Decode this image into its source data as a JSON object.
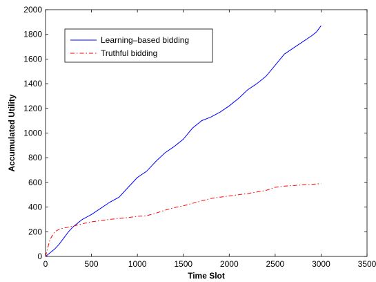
{
  "chart_data": {
    "type": "line",
    "xlabel": "Time Slot",
    "ylabel": "Accumulated Utility",
    "xlim": [
      0,
      3500
    ],
    "ylim": [
      0,
      2000
    ],
    "xticks": [
      0,
      500,
      1000,
      1500,
      2000,
      2500,
      3000,
      3500
    ],
    "yticks": [
      0,
      200,
      400,
      600,
      800,
      1000,
      1200,
      1400,
      1600,
      1800,
      2000
    ],
    "grid": false,
    "legend_position": "top-left",
    "series": [
      {
        "name": "Learning–based bidding",
        "color": "#0000ff",
        "style": "solid",
        "x": [
          0,
          50,
          100,
          150,
          200,
          250,
          300,
          350,
          400,
          450,
          500,
          600,
          700,
          800,
          900,
          1000,
          1100,
          1200,
          1300,
          1400,
          1500,
          1600,
          1700,
          1800,
          1900,
          2000,
          2100,
          2200,
          2300,
          2400,
          2500,
          2600,
          2700,
          2800,
          2900,
          2950,
          3000
        ],
        "y": [
          0,
          30,
          60,
          100,
          150,
          200,
          240,
          270,
          300,
          320,
          340,
          390,
          440,
          480,
          560,
          640,
          690,
          770,
          840,
          890,
          950,
          1040,
          1100,
          1130,
          1170,
          1220,
          1280,
          1350,
          1400,
          1460,
          1550,
          1640,
          1690,
          1740,
          1790,
          1820,
          1870
        ]
      },
      {
        "name": "Truthful bidding",
        "color": "#ff0000",
        "style": "dashdot",
        "x": [
          0,
          20,
          50,
          100,
          150,
          200,
          300,
          400,
          500,
          700,
          900,
          1000,
          1100,
          1200,
          1300,
          1400,
          1500,
          1600,
          1700,
          1800,
          2000,
          2200,
          2400,
          2500,
          2600,
          2800,
          3000
        ],
        "y": [
          0,
          60,
          140,
          200,
          220,
          230,
          245,
          265,
          280,
          300,
          315,
          325,
          330,
          350,
          375,
          395,
          410,
          430,
          450,
          470,
          490,
          510,
          535,
          560,
          570,
          580,
          590
        ]
      }
    ]
  }
}
